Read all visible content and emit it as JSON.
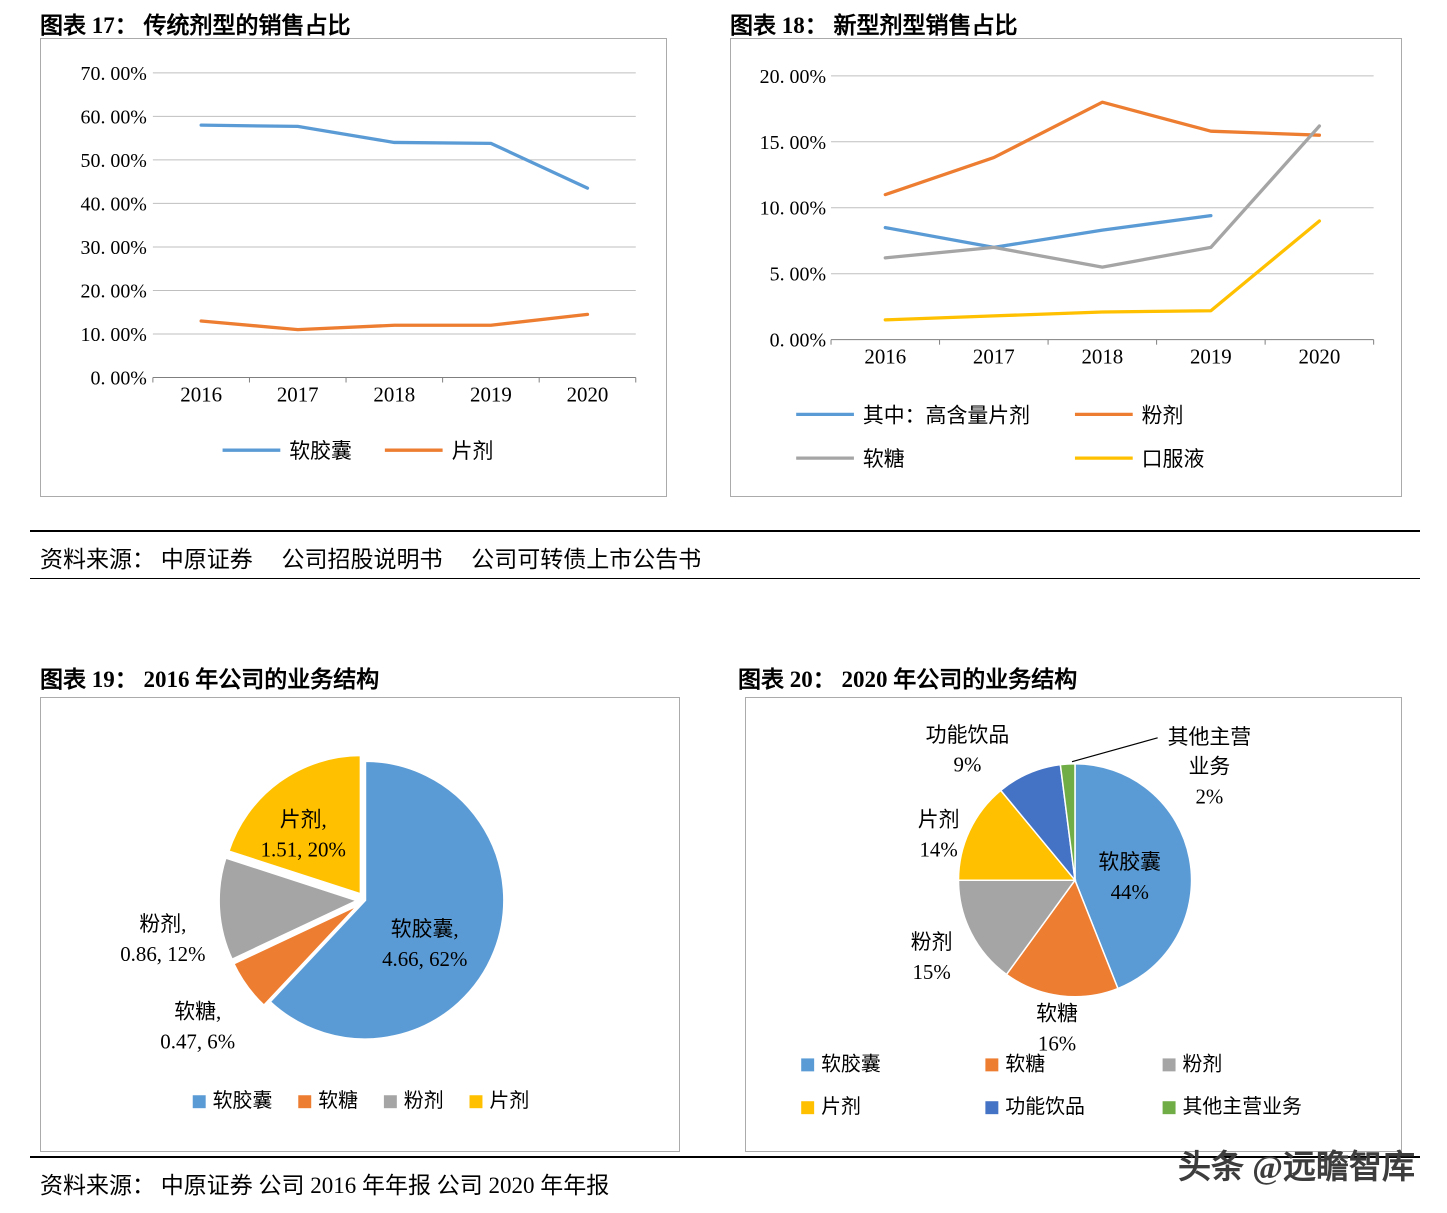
{
  "sources": {
    "note1": "资料来源： 中原证券　 公司招股说明书　 公司可转债上市公告书",
    "note2": "资料来源： 中原证券 公司 2016 年年报 公司 2020 年年报"
  },
  "watermark": "头条 @远瞻智库",
  "chart_data": [
    {
      "id": "chart17",
      "type": "line",
      "title": "图表 17： 传统剂型的销售占比",
      "categories": [
        "2016",
        "2017",
        "2018",
        "2019",
        "2020"
      ],
      "series": [
        {
          "name": "软胶囊",
          "color": "#5B9BD5",
          "values": [
            58.0,
            57.7,
            54.0,
            53.8,
            43.5
          ]
        },
        {
          "name": "片剂",
          "color": "#ED7D31",
          "values": [
            13.0,
            11.0,
            12.0,
            12.0,
            14.5
          ]
        }
      ],
      "ylim": [
        0,
        70
      ],
      "ytick_labels": [
        "0. 00%",
        "10. 00%",
        "20. 00%",
        "30. 00%",
        "40. 00%",
        "50. 00%",
        "60. 00%",
        "70. 00%"
      ],
      "grid": true,
      "legend_position": "bottom"
    },
    {
      "id": "chart18",
      "type": "line",
      "title": "图表 18： 新型剂型销售占比",
      "categories": [
        "2016",
        "2017",
        "2018",
        "2019",
        "2020"
      ],
      "series": [
        {
          "name": "其中：高含量片剂",
          "color": "#5B9BD5",
          "values": [
            8.5,
            7.0,
            8.3,
            9.4,
            null
          ]
        },
        {
          "name": "粉剂",
          "color": "#ED7D31",
          "values": [
            11.0,
            13.8,
            18.0,
            15.8,
            15.5
          ]
        },
        {
          "name": "软糖",
          "color": "#A5A5A5",
          "values": [
            6.2,
            7.0,
            5.5,
            7.0,
            16.2
          ]
        },
        {
          "name": "口服液",
          "color": "#FFC000",
          "values": [
            1.5,
            1.8,
            2.1,
            2.2,
            9.0
          ]
        }
      ],
      "ylim": [
        0,
        20
      ],
      "ytick_labels": [
        "0. 00%",
        "5. 00%",
        "10. 00%",
        "15. 00%",
        "20. 00%"
      ],
      "grid": true,
      "legend_position": "bottom-2col"
    },
    {
      "id": "chart19",
      "type": "pie",
      "title": "图表 19： 2016 年公司的业务结构",
      "slices": [
        {
          "name": "软胶囊",
          "value": 4.66,
          "pct": 62,
          "color": "#5B9BD5",
          "label_lines": [
            "软胶囊,",
            "4.66, 62%"
          ]
        },
        {
          "name": "软糖",
          "value": 0.47,
          "pct": 6,
          "color": "#ED7D31",
          "label_lines": [
            "软糖,",
            "0.47, 6%"
          ]
        },
        {
          "name": "粉剂",
          "value": 0.86,
          "pct": 12,
          "color": "#A5A5A5",
          "label_lines": [
            "粉剂,",
            "0.86, 12%"
          ]
        },
        {
          "name": "片剂",
          "value": 1.51,
          "pct": 20,
          "color": "#FFC000",
          "label_lines": [
            "片剂,",
            "1.51, 20%"
          ]
        }
      ],
      "legend": [
        "软胶囊",
        "软糖",
        "粉剂",
        "片剂"
      ]
    },
    {
      "id": "chart20",
      "type": "pie",
      "title": "图表 20： 2020 年公司的业务结构",
      "slices": [
        {
          "name": "软胶囊",
          "pct": 44,
          "color": "#5B9BD5",
          "label_lines": [
            "软胶囊",
            "44%"
          ]
        },
        {
          "name": "软糖",
          "pct": 16,
          "color": "#ED7D31",
          "label_lines": [
            "软糖",
            "16%"
          ]
        },
        {
          "name": "粉剂",
          "pct": 15,
          "color": "#A5A5A5",
          "label_lines": [
            "粉剂",
            "15%"
          ]
        },
        {
          "name": "片剂",
          "pct": 14,
          "color": "#FFC000",
          "label_lines": [
            "片剂",
            "14%"
          ]
        },
        {
          "name": "功能饮品",
          "pct": 9,
          "color": "#4472C4",
          "label_lines": [
            "功能饮品",
            "9%"
          ]
        },
        {
          "name": "其他主营业务",
          "pct": 2,
          "color": "#70AD47",
          "label_lines": [
            "其他主营",
            "业务",
            "2%"
          ]
        }
      ],
      "legend": [
        "软胶囊",
        "软糖",
        "粉剂",
        "片剂",
        "功能饮品",
        "其他主营业务"
      ]
    }
  ]
}
